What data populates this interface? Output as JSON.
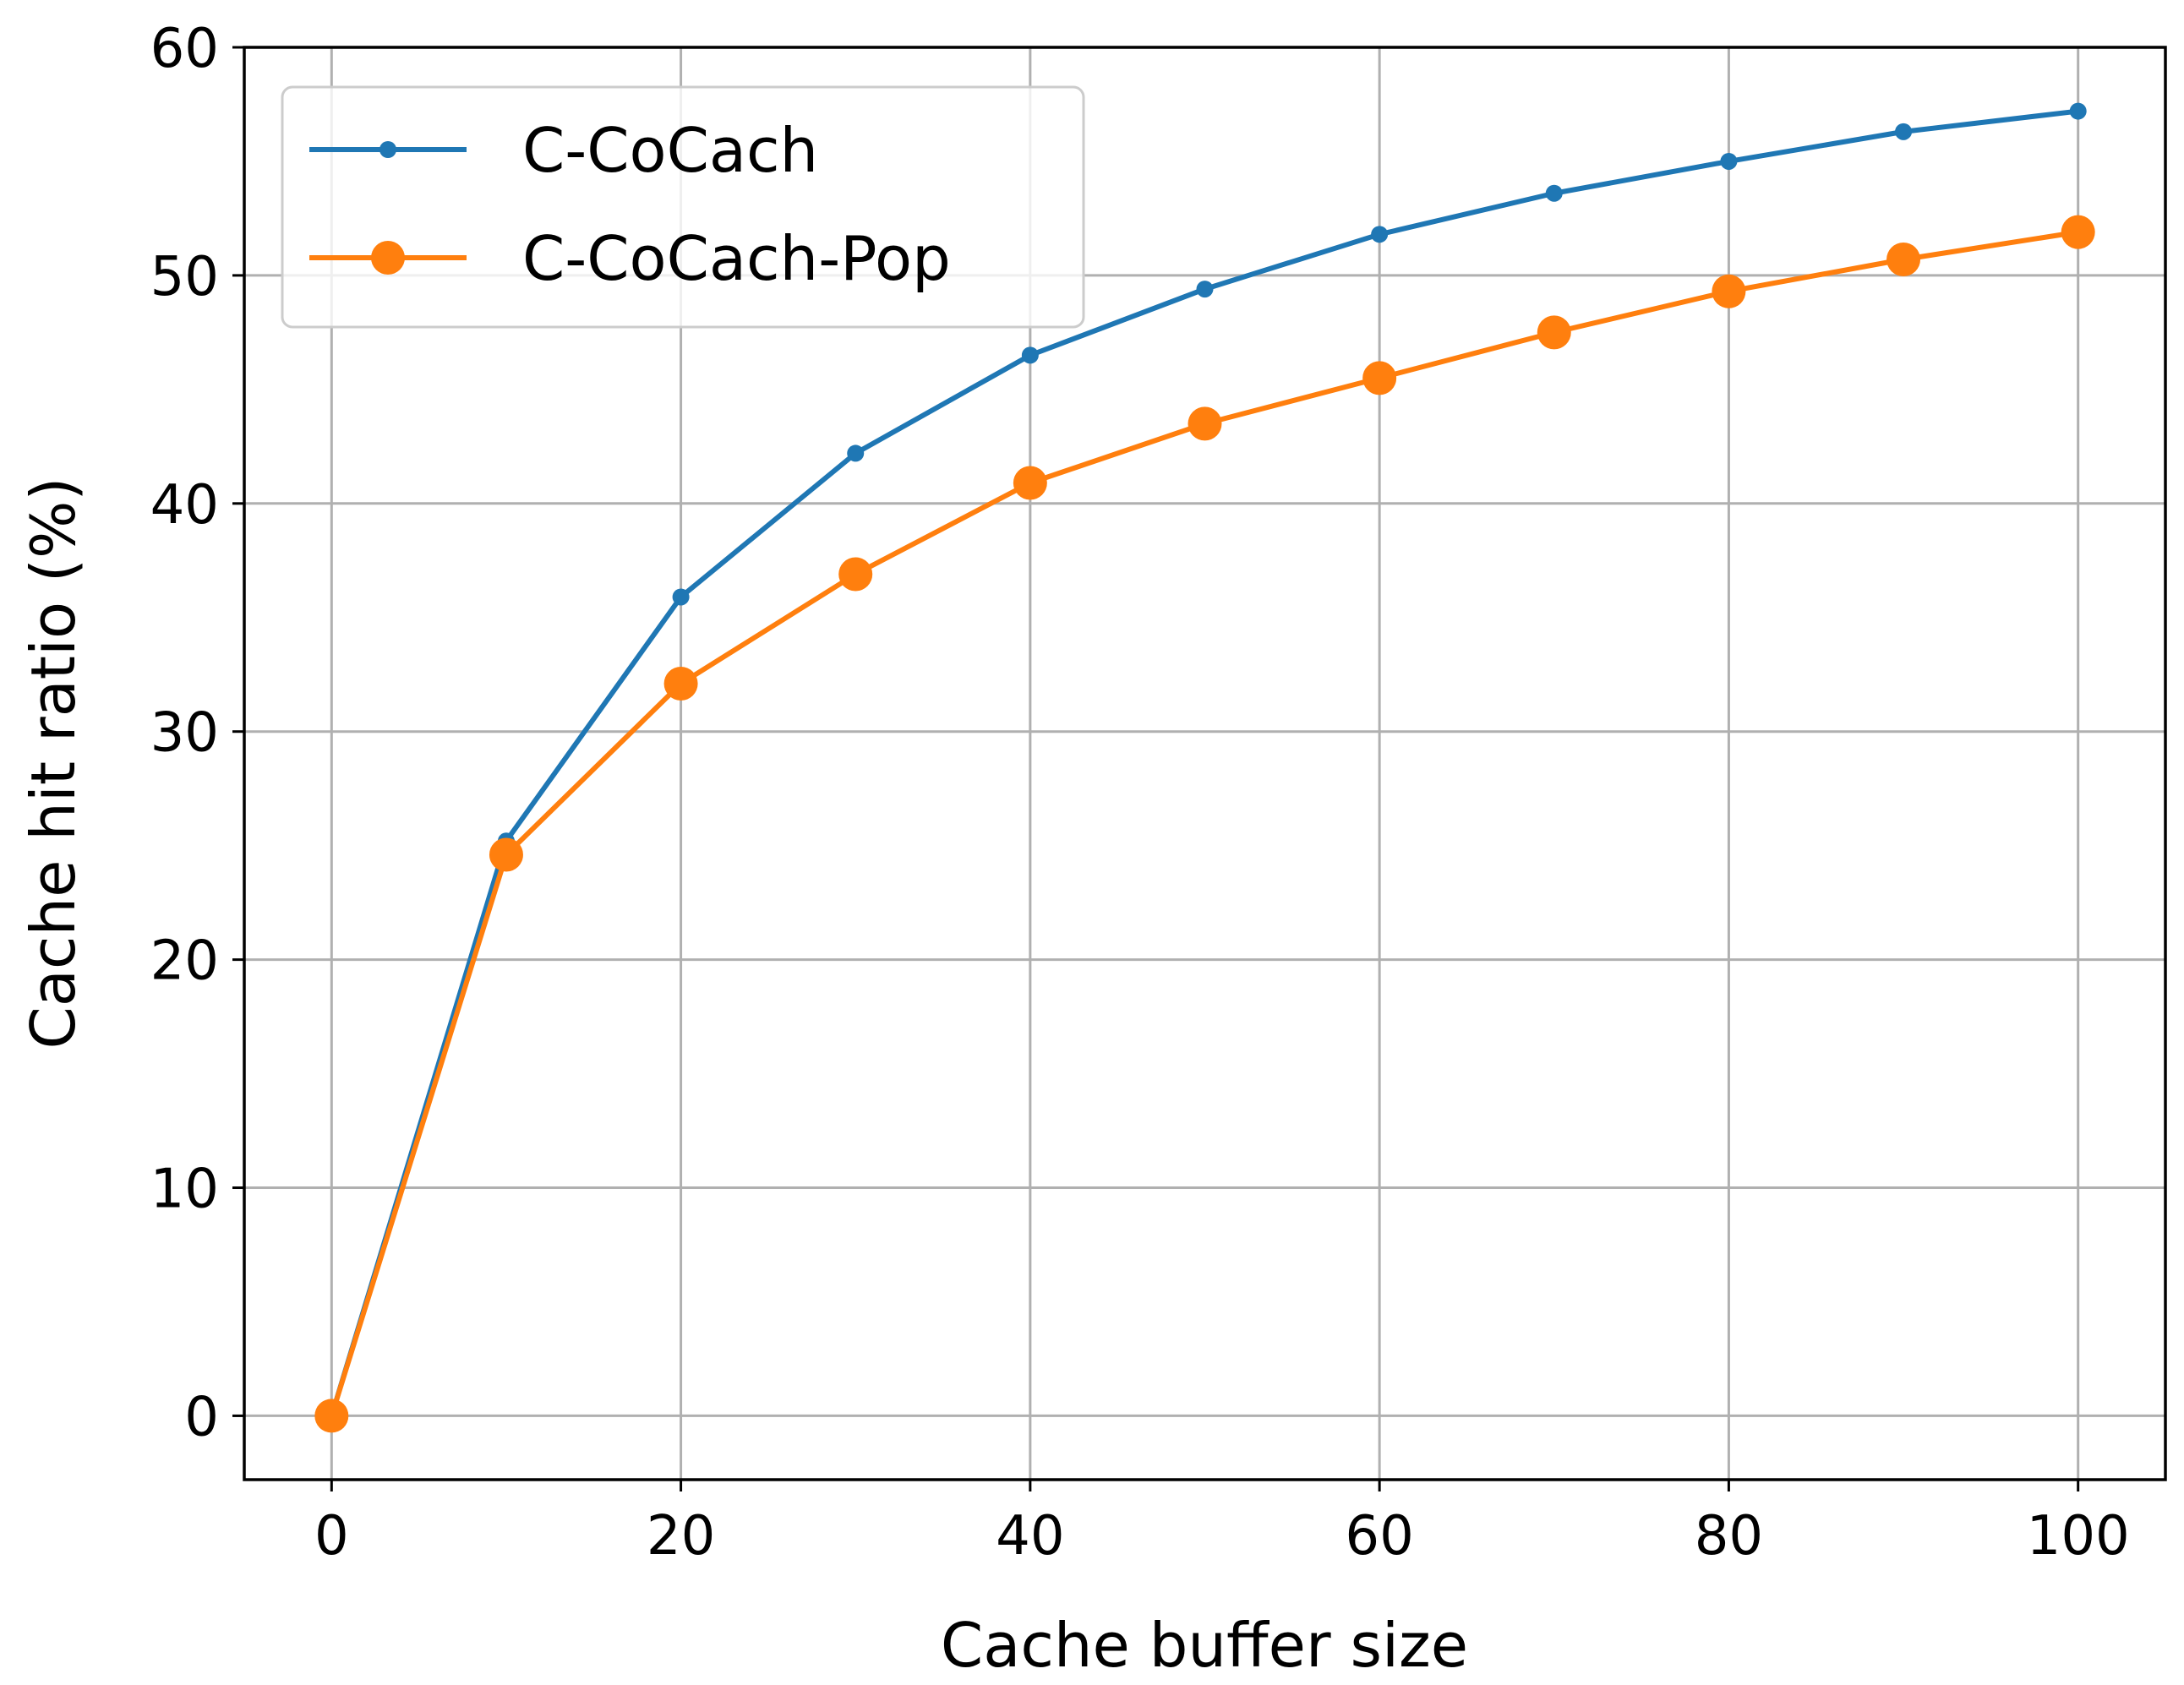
{
  "chart_data": {
    "type": "line",
    "title": "",
    "xlabel": "Cache buffer size",
    "ylabel": "Cache hit ratio (%)",
    "xlim": [
      -5,
      105
    ],
    "ylim": [
      -2.8,
      60
    ],
    "xticks": [
      0,
      20,
      40,
      60,
      80,
      100
    ],
    "yticks": [
      0,
      10,
      20,
      30,
      40,
      50,
      60
    ],
    "grid": true,
    "legend_position": "top-left",
    "x": [
      0,
      10,
      20,
      30,
      40,
      50,
      60,
      70,
      80,
      90,
      100
    ],
    "series": [
      {
        "name": "C-CoCach",
        "color": "#1f77b4",
        "marker": "small-dot",
        "values": [
          0,
          25.2,
          35.9,
          42.2,
          46.5,
          49.4,
          51.8,
          53.6,
          55.0,
          56.3,
          57.2
        ]
      },
      {
        "name": "C-CoCach-Pop",
        "color": "#ff7f0e",
        "marker": "large-dot",
        "values": [
          0,
          24.6,
          32.1,
          36.9,
          40.9,
          43.5,
          45.5,
          47.5,
          49.3,
          50.7,
          51.9
        ]
      }
    ]
  }
}
